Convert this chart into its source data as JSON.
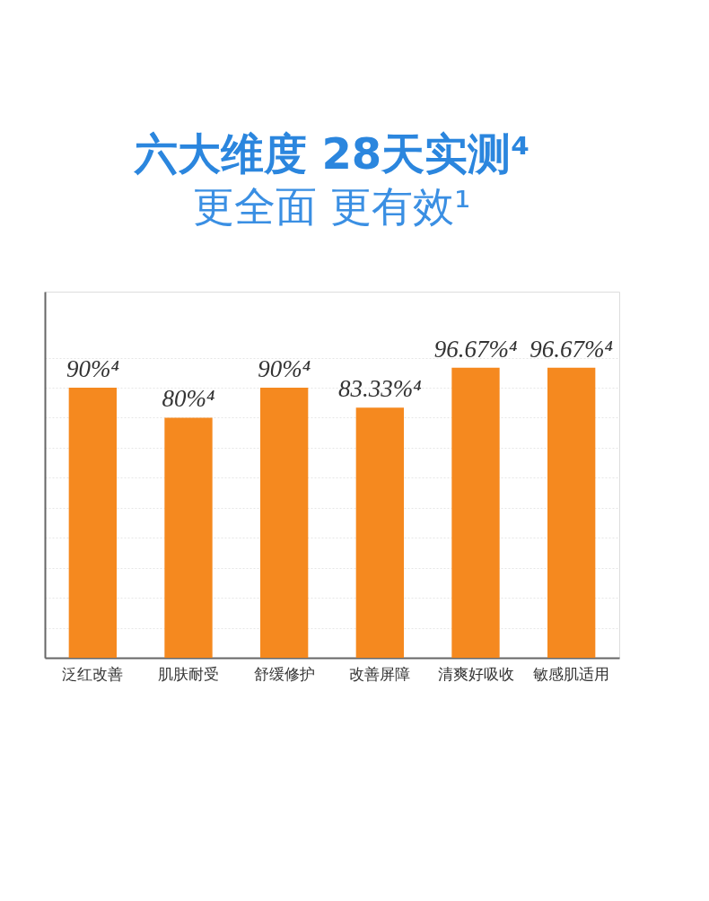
{
  "chart_data": {
    "type": "bar",
    "title": "六大维度 28天实测⁴",
    "subtitle": "更全面 更有效¹",
    "categories": [
      "泛红改善",
      "肌肤耐受",
      "舒缓修护",
      "改善屏障",
      "清爽好吸收",
      "敏感肌适用"
    ],
    "values": [
      90,
      80,
      90,
      83.33,
      96.67,
      96.67
    ],
    "value_labels": [
      "90%⁴",
      "80%⁴",
      "90%⁴",
      "83.33%⁴",
      "96.67%⁴",
      "96.67%⁴"
    ],
    "color": "#f5891f",
    "ylim": [
      0,
      122
    ],
    "yticks": [
      {
        "value": 10,
        "label": null
      },
      {
        "value": 20,
        "label": null
      },
      {
        "value": 30,
        "label": null
      },
      {
        "value": 40,
        "label": null
      },
      {
        "value": 50,
        "label": null
      },
      {
        "value": 60,
        "label": null
      },
      {
        "value": 70,
        "label": null
      },
      {
        "value": 80,
        "label": null
      },
      {
        "value": 90,
        "label": null
      },
      {
        "value": 100,
        "label": null
      }
    ],
    "grid": "y",
    "tick_labels": "x"
  }
}
